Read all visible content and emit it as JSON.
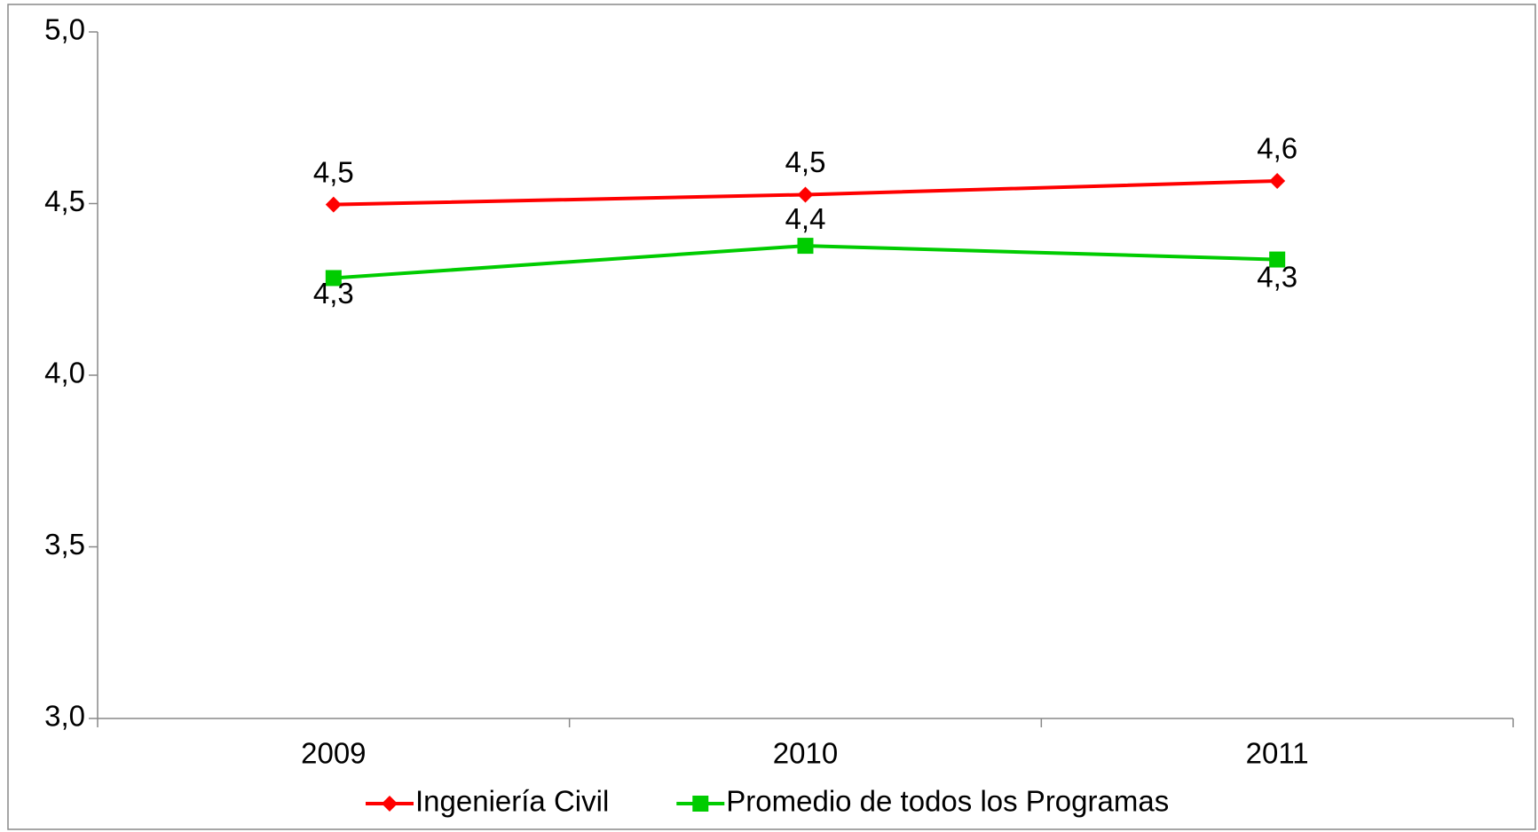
{
  "chart_data": {
    "type": "line",
    "categories": [
      "2009",
      "2010",
      "2011"
    ],
    "series": [
      {
        "name": "Ingeniería Civil",
        "color": "#ff0000",
        "marker": "diamond",
        "values": [
          4.497,
          4.526,
          4.566
        ],
        "value_labels": [
          "4,5",
          "4,5",
          "4,6"
        ]
      },
      {
        "name": "Promedio de todos los Programas",
        "color": "#00cc00",
        "marker": "square",
        "values": [
          4.283,
          4.377,
          4.337
        ],
        "value_labels": [
          "4,3",
          "4,4",
          "4,3"
        ]
      }
    ],
    "ylim": [
      3,
      5
    ],
    "yticks": [
      {
        "value": 3,
        "label": "3,0"
      },
      {
        "value": 3.5,
        "label": "3,5"
      },
      {
        "value": 4,
        "label": "4,0"
      },
      {
        "value": 4.5,
        "label": "4,5"
      },
      {
        "value": 5,
        "label": "5,0"
      }
    ],
    "legend": "bottom"
  }
}
